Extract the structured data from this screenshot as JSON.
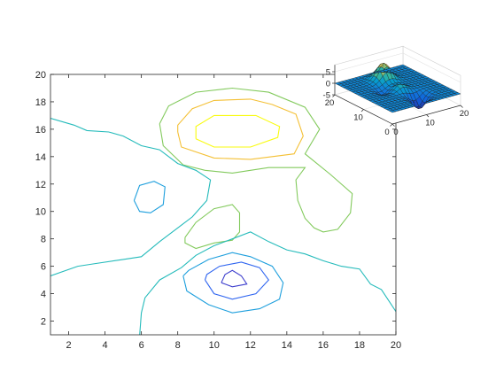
{
  "chart_data": [
    {
      "type": "contour",
      "title": "",
      "xlabel": "",
      "ylabel": "",
      "xlim": [
        1,
        20
      ],
      "ylim": [
        1,
        20
      ],
      "x_ticks": [
        "2",
        "4",
        "6",
        "8",
        "10",
        "12",
        "14",
        "16",
        "18",
        "20"
      ],
      "y_ticks": [
        "2",
        "4",
        "6",
        "8",
        "10",
        "12",
        "14",
        "16",
        "18",
        "20"
      ],
      "grid": false,
      "colormap": "parula",
      "levels": [
        {
          "level": 5.6,
          "color": "#f9fb0e",
          "curves": [
            [
              [
                9,
                15.3
              ],
              [
                10,
                14.7
              ],
              [
                12,
                14.7
              ],
              [
                13.5,
                15.4
              ],
              [
                13.6,
                16.2
              ],
              [
                12.3,
                17
              ],
              [
                10,
                17
              ],
              [
                9,
                16.2
              ],
              [
                9,
                15.3
              ]
            ]
          ]
        },
        {
          "level": 4.2,
          "color": "#f4c035",
          "curves": [
            [
              [
                8,
                15.8
              ],
              [
                8.2,
                14.7
              ],
              [
                10,
                13.9
              ],
              [
                12,
                13.8
              ],
              [
                14.4,
                14.2
              ],
              [
                14.9,
                15.5
              ],
              [
                14.5,
                17.1
              ],
              [
                13.2,
                17.8
              ],
              [
                12,
                18.2
              ],
              [
                10,
                18.1
              ],
              [
                8.8,
                17.5
              ],
              [
                8,
                16.3
              ],
              [
                8,
                15.8
              ]
            ]
          ]
        },
        {
          "level": 2.8,
          "color": "#83ca5d",
          "curves": [
            [
              [
                7,
                16.4
              ],
              [
                7.5,
                17.7
              ],
              [
                9,
                18.7
              ],
              [
                11,
                19
              ],
              [
                13,
                18.7
              ],
              [
                15,
                17.6
              ],
              [
                15.8,
                16
              ],
              [
                15,
                14.2
              ],
              [
                16.4,
                12.7
              ],
              [
                17.6,
                11.3
              ],
              [
                17.5,
                9.9
              ],
              [
                16.8,
                8.7
              ],
              [
                16,
                8.5
              ],
              [
                15.5,
                8.8
              ],
              [
                15,
                9.5
              ],
              [
                14.6,
                10.8
              ],
              [
                14.5,
                12.3
              ],
              [
                15,
                13.2
              ],
              [
                13,
                13.2
              ],
              [
                11,
                12.8
              ],
              [
                9.5,
                13
              ],
              [
                8.3,
                13.4
              ],
              [
                7.2,
                14.8
              ],
              [
                7,
                16.4
              ]
            ],
            [
              [
                8.4,
                8.1
              ],
              [
                9,
                9.2
              ],
              [
                10,
                10.2
              ],
              [
                11,
                10.5
              ],
              [
                11.4,
                9.9
              ],
              [
                11.4,
                8.5
              ],
              [
                11,
                7.9
              ],
              [
                10,
                7.7
              ],
              [
                9,
                7.3
              ],
              [
                8.4,
                7.7
              ],
              [
                8.4,
                8.1
              ]
            ]
          ]
        },
        {
          "level": 1.4,
          "color": "#25bbbb",
          "curves": [
            [
              [
                1,
                16.8
              ],
              [
                2.3,
                16.3
              ],
              [
                3,
                15.9
              ],
              [
                4.2,
                15.8
              ],
              [
                5,
                15.5
              ],
              [
                6,
                14.8
              ],
              [
                7,
                14.5
              ],
              [
                8,
                13.5
              ],
              [
                9,
                13
              ],
              [
                9.8,
                12.3
              ],
              [
                9.6,
                10.8
              ],
              [
                8.8,
                9.6
              ],
              [
                8,
                8.8
              ],
              [
                7,
                7.8
              ],
              [
                6,
                6.7
              ],
              [
                5,
                6.5
              ],
              [
                3.5,
                6.2
              ],
              [
                2.5,
                6
              ],
              [
                1,
                5.3
              ]
            ],
            [
              [
                5.9,
                0.9
              ],
              [
                6,
                2.6
              ],
              [
                6.2,
                3.7
              ],
              [
                7,
                5
              ],
              [
                8.2,
                5.9
              ],
              [
                9,
                6.8
              ],
              [
                10,
                7.5
              ],
              [
                11,
                8
              ],
              [
                12,
                8.5
              ],
              [
                13,
                7.8
              ],
              [
                14,
                7.2
              ],
              [
                15,
                6.9
              ],
              [
                16,
                6.4
              ],
              [
                17,
                6
              ],
              [
                18,
                5.8
              ],
              [
                18.6,
                4.7
              ],
              [
                19.2,
                4.3
              ],
              [
                20,
                2.7
              ]
            ]
          ]
        },
        {
          "level": 0.0,
          "color": "#1e9fdd",
          "curves": [
            [
              [
                5.6,
                10.8
              ],
              [
                5.9,
                11.9
              ],
              [
                6.7,
                12.2
              ],
              [
                7.3,
                11.8
              ],
              [
                7.2,
                10.5
              ],
              [
                6.5,
                9.9
              ],
              [
                5.9,
                10
              ],
              [
                5.6,
                10.8
              ]
            ],
            [
              [
                8.3,
                5.3
              ],
              [
                8.5,
                4.2
              ],
              [
                9.7,
                3.2
              ],
              [
                11,
                2.6
              ],
              [
                12.5,
                2.9
              ],
              [
                13.6,
                3.6
              ],
              [
                13.8,
                4.8
              ],
              [
                13.2,
                6
              ],
              [
                12,
                6.7
              ],
              [
                11,
                7
              ],
              [
                9.7,
                6.5
              ],
              [
                8.6,
                5.7
              ],
              [
                8.3,
                5.3
              ]
            ]
          ]
        },
        {
          "level": -1.4,
          "color": "#2f65f0",
          "curves": [
            [
              [
                9.5,
                5
              ],
              [
                10,
                4
              ],
              [
                11,
                3.6
              ],
              [
                12.3,
                4
              ],
              [
                13,
                5
              ],
              [
                12.5,
                5.9
              ],
              [
                11.5,
                6.3
              ],
              [
                10.3,
                6
              ],
              [
                9.6,
                5.4
              ],
              [
                9.5,
                5
              ]
            ]
          ]
        },
        {
          "level": -2.8,
          "color": "#3d3ecd",
          "curves": [
            [
              [
                10.4,
                4.8
              ],
              [
                11,
                4.5
              ],
              [
                11.8,
                4.7
              ],
              [
                11.5,
                5.3
              ],
              [
                11,
                5.7
              ],
              [
                10.6,
                5.4
              ],
              [
                10.4,
                4.8
              ]
            ]
          ]
        }
      ]
    },
    {
      "type": "surface",
      "title": "",
      "xlim": [
        0,
        20
      ],
      "ylim": [
        0,
        20
      ],
      "zlim": [
        -5,
        8
      ],
      "x_ticks": [
        "0",
        "10",
        "20"
      ],
      "y_ticks": [
        "0",
        "10",
        "20"
      ],
      "z_ticks": [
        "5",
        "0",
        "-5"
      ],
      "grid": true,
      "colormap": "parula",
      "peaks": [
        {
          "x": 10.5,
          "y": 15.5,
          "z": 7.5
        },
        {
          "x": 11.5,
          "y": 4.5,
          "z": -6
        },
        {
          "x": 6.5,
          "y": 11,
          "z": -2
        },
        {
          "x": 10,
          "y": 9,
          "z": 3
        }
      ]
    }
  ]
}
